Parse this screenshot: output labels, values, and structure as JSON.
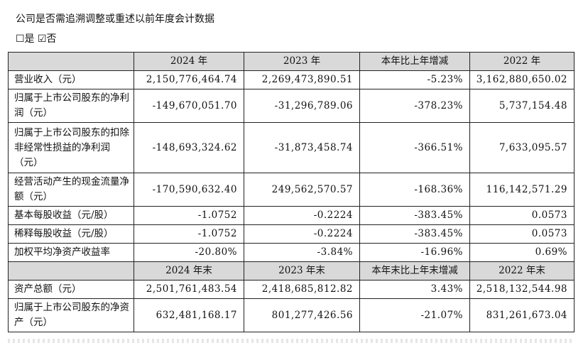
{
  "heading": "公司是否需追溯调整或重述以前年度会计数据",
  "checkbox_line": "☐是 ☑否",
  "table": {
    "header1": [
      "2024 年",
      "2023 年",
      "本年比上年增减",
      "2022 年"
    ],
    "rows1": [
      {
        "label": "营业收入（元）",
        "values": [
          "2,150,776,464.74",
          "2,269,473,890.51",
          "-5.23%",
          "3,162,880,650.02"
        ]
      },
      {
        "label": "归属于上市公司股东的净利润（元）",
        "values": [
          "-149,670,051.70",
          "-31,296,789.06",
          "-378.23%",
          "5,737,154.48"
        ]
      },
      {
        "label": "归属于上市公司股东的扣除非经常性损益的净利润（元）",
        "values": [
          "-148,693,324.62",
          "-31,873,458.74",
          "-366.51%",
          "7,633,095.57"
        ]
      },
      {
        "label": "经营活动产生的现金流量净额（元）",
        "values": [
          "-170,590,632.40",
          "249,562,570.57",
          "-168.36%",
          "116,142,571.29"
        ]
      },
      {
        "label": "基本每股收益（元/股）",
        "values": [
          "-1.0752",
          "-0.2224",
          "-383.45%",
          "0.0573"
        ]
      },
      {
        "label": "稀释每股收益（元/股）",
        "values": [
          "-1.0752",
          "-0.2224",
          "-383.45%",
          "0.0573"
        ]
      },
      {
        "label": "加权平均净资产收益率",
        "values": [
          "-20.80%",
          "-3.84%",
          "-16.96%",
          "0.69%"
        ]
      }
    ],
    "header2": [
      "2024 年末",
      "2023 年末",
      "本年末比上年末增减",
      "2022 年末"
    ],
    "rows2": [
      {
        "label": "资产总额（元）",
        "values": [
          "2,501,761,483.54",
          "2,418,685,812.82",
          "3.43%",
          "2,518,132,544.98"
        ]
      },
      {
        "label": "归属于上市公司股东的净资产（元）",
        "values": [
          "632,481,168.17",
          "801,277,426.56",
          "-21.07%",
          "831,261,673.04"
        ]
      }
    ]
  }
}
